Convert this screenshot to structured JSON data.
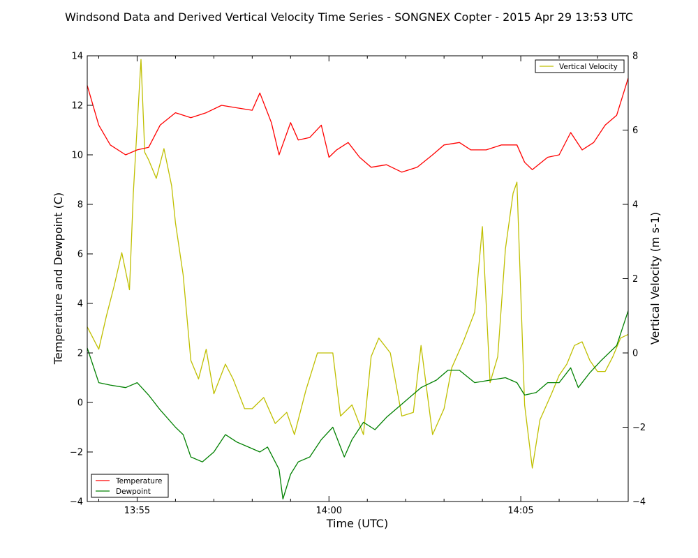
{
  "chart_data": {
    "type": "line",
    "title": "Windsond Data and Derived Vertical Velocity Time Series - SONGNEX Copter - 2015 Apr 29 13:53 UTC",
    "xlabel": "Time (UTC)",
    "ylabel_left": "Temperature and Dewpoint (C)",
    "ylabel_right": "Vertical Velocity (m s-1)",
    "xlim": [
      "13:53:42",
      "14:07:48"
    ],
    "ylim_left": [
      -4,
      14
    ],
    "ylim_right": [
      -4,
      8
    ],
    "x_ticks": [
      "13:55",
      "14:00",
      "14:05"
    ],
    "y_ticks_left": [
      "−4",
      "−2",
      "0",
      "2",
      "4",
      "6",
      "8",
      "10",
      "12",
      "14"
    ],
    "y_ticks_right": [
      "−4",
      "−2",
      "0",
      "2",
      "4",
      "6",
      "8"
    ],
    "grid": false,
    "legends": [
      {
        "position": "top-right",
        "entries": [
          "Vertical Velocity"
        ]
      },
      {
        "position": "bottom-left",
        "entries": [
          "Temperature",
          "Dewpoint"
        ]
      }
    ],
    "colors": {
      "temperature": "#ff0000",
      "dewpoint": "#008000",
      "vertical_velocity": "#bfbf00"
    },
    "series": [
      {
        "name": "Temperature",
        "axis": "left",
        "x": [
          "13:53:42",
          "13:54:00",
          "13:54:18",
          "13:54:42",
          "13:55:00",
          "13:55:18",
          "13:55:36",
          "13:56:00",
          "13:56:24",
          "13:56:48",
          "13:57:12",
          "13:57:36",
          "13:58:00",
          "13:58:12",
          "13:58:30",
          "13:58:42",
          "13:59:00",
          "13:59:12",
          "13:59:30",
          "13:59:48",
          "14:00:00",
          "14:00:12",
          "14:00:30",
          "14:00:48",
          "14:01:06",
          "14:01:30",
          "14:01:54",
          "14:02:18",
          "14:02:42",
          "14:03:00",
          "14:03:24",
          "14:03:42",
          "14:04:06",
          "14:04:30",
          "14:04:54",
          "14:05:06",
          "14:05:18",
          "14:05:42",
          "14:06:00",
          "14:06:18",
          "14:06:36",
          "14:06:54",
          "14:07:12",
          "14:07:30",
          "14:07:48"
        ],
        "values": [
          12.8,
          11.2,
          10.4,
          10.0,
          10.2,
          10.3,
          11.2,
          11.7,
          11.5,
          11.7,
          12.0,
          11.9,
          11.8,
          12.5,
          11.3,
          10.0,
          11.3,
          10.6,
          10.7,
          11.2,
          9.9,
          10.2,
          10.5,
          9.9,
          9.5,
          9.6,
          9.3,
          9.5,
          10.0,
          10.4,
          10.5,
          10.2,
          10.2,
          10.4,
          10.4,
          9.7,
          9.4,
          9.9,
          10.0,
          10.9,
          10.2,
          10.5,
          11.2,
          11.6,
          13.1
        ]
      },
      {
        "name": "Dewpoint",
        "axis": "left",
        "x": [
          "13:53:42",
          "13:54:00",
          "13:54:18",
          "13:54:42",
          "13:55:00",
          "13:55:18",
          "13:55:36",
          "13:56:00",
          "13:56:12",
          "13:56:24",
          "13:56:42",
          "13:57:00",
          "13:57:18",
          "13:57:36",
          "13:57:54",
          "13:58:12",
          "13:58:24",
          "13:58:42",
          "13:58:48",
          "13:59:00",
          "13:59:12",
          "13:59:30",
          "13:59:48",
          "14:00:06",
          "14:00:24",
          "14:00:36",
          "14:00:54",
          "14:01:12",
          "14:01:30",
          "14:01:48",
          "14:02:06",
          "14:02:24",
          "14:02:48",
          "14:03:06",
          "14:03:24",
          "14:03:48",
          "14:04:12",
          "14:04:36",
          "14:04:54",
          "14:05:06",
          "14:05:24",
          "14:05:42",
          "14:06:00",
          "14:06:18",
          "14:06:30",
          "14:06:48",
          "14:07:06",
          "14:07:30",
          "14:07:48"
        ],
        "values": [
          2.2,
          0.8,
          0.7,
          0.6,
          0.8,
          0.3,
          -0.3,
          -1.0,
          -1.3,
          -2.2,
          -2.4,
          -2.0,
          -1.3,
          -1.6,
          -1.8,
          -2.0,
          -1.8,
          -2.7,
          -3.9,
          -2.9,
          -2.4,
          -2.2,
          -1.5,
          -1.0,
          -2.2,
          -1.5,
          -0.8,
          -1.1,
          -0.6,
          -0.2,
          0.2,
          0.6,
          0.9,
          1.3,
          1.3,
          0.8,
          0.9,
          1.0,
          0.8,
          0.3,
          0.4,
          0.8,
          0.8,
          1.4,
          0.6,
          1.2,
          1.7,
          2.3,
          3.7
        ]
      },
      {
        "name": "Vertical Velocity",
        "axis": "right",
        "x": [
          "13:53:42",
          "13:54:00",
          "13:54:12",
          "13:54:24",
          "13:54:36",
          "13:54:48",
          "13:54:54",
          "13:55:06",
          "13:55:12",
          "13:55:18",
          "13:55:30",
          "13:55:42",
          "13:55:54",
          "13:56:00",
          "13:56:12",
          "13:56:24",
          "13:56:36",
          "13:56:48",
          "13:57:00",
          "13:57:18",
          "13:57:30",
          "13:57:48",
          "13:58:00",
          "13:58:18",
          "13:58:36",
          "13:58:54",
          "13:59:06",
          "13:59:24",
          "13:59:42",
          "13:59:54",
          "14:00:06",
          "14:00:18",
          "14:00:36",
          "14:00:54",
          "14:01:06",
          "14:01:18",
          "14:01:36",
          "14:01:54",
          "14:02:12",
          "14:02:24",
          "14:02:42",
          "14:03:00",
          "14:03:12",
          "14:03:30",
          "14:03:48",
          "14:04:00",
          "14:04:12",
          "14:04:24",
          "14:04:36",
          "14:04:48",
          "14:04:54",
          "14:05:06",
          "14:05:18",
          "14:05:30",
          "14:05:48",
          "14:06:00",
          "14:06:12",
          "14:06:24",
          "14:06:36",
          "14:06:48",
          "14:07:00",
          "14:07:12",
          "14:07:24",
          "14:07:36",
          "14:07:48"
        ],
        "values": [
          0.7,
          0.1,
          1.0,
          1.8,
          2.7,
          1.7,
          4.3,
          7.9,
          5.4,
          5.2,
          4.7,
          5.5,
          4.5,
          3.5,
          2.1,
          -0.2,
          -0.7,
          0.1,
          -1.1,
          -0.3,
          -0.7,
          -1.5,
          -1.5,
          -1.2,
          -1.9,
          -1.6,
          -2.2,
          -1.0,
          0.0,
          0.0,
          0.0,
          -1.7,
          -1.4,
          -2.2,
          -0.1,
          0.4,
          0.0,
          -1.7,
          -1.6,
          0.2,
          -2.2,
          -1.5,
          -0.4,
          0.3,
          1.1,
          3.4,
          -0.8,
          -0.1,
          2.8,
          4.3,
          4.6,
          -1.4,
          -3.1,
          -1.8,
          -1.1,
          -0.6,
          -0.3,
          0.2,
          0.3,
          -0.2,
          -0.5,
          -0.5,
          -0.1,
          0.4,
          0.5
        ]
      }
    ]
  }
}
